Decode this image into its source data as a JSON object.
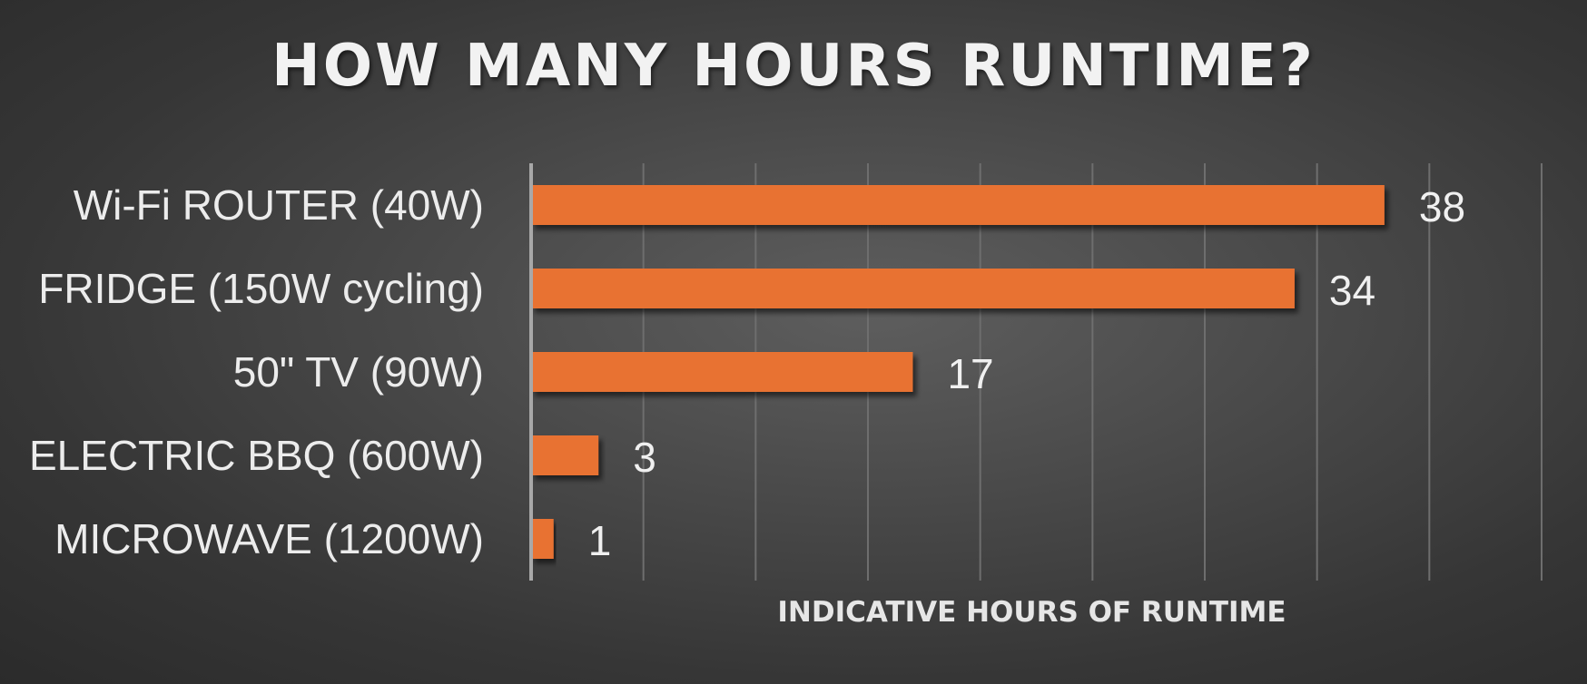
{
  "chart_data": {
    "type": "bar",
    "orientation": "horizontal",
    "title": "HOW MANY HOURS RUNTIME?",
    "xlabel": "INDICATIVE HOURS OF RUNTIME",
    "ylabel": "",
    "categories": [
      "Wi-Fi ROUTER (40W)",
      "FRIDGE (150W cycling)",
      "50\" TV (90W)",
      "ELECTRIC BBQ (600W)",
      "MICROWAVE (1200W)"
    ],
    "values": [
      38,
      34,
      17,
      3,
      1
    ],
    "data_labels": [
      "38",
      "34",
      "17",
      "3",
      "1"
    ],
    "xlim": [
      0,
      45
    ],
    "grid": true,
    "legend": "none",
    "colors": {
      "bar": "#E87232",
      "gridline": "#6e6e6e",
      "axis": "#a8a8a8",
      "text": "#ececec"
    }
  }
}
